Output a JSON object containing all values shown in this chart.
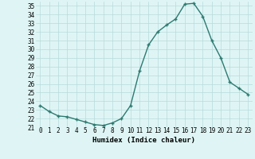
{
  "x": [
    0,
    1,
    2,
    3,
    4,
    5,
    6,
    7,
    8,
    9,
    10,
    11,
    12,
    13,
    14,
    15,
    16,
    17,
    18,
    19,
    20,
    21,
    22,
    23
  ],
  "y": [
    23.5,
    22.8,
    22.3,
    22.2,
    21.9,
    21.6,
    21.3,
    21.2,
    21.5,
    22.0,
    23.5,
    27.5,
    30.5,
    32.0,
    32.8,
    33.5,
    35.2,
    35.3,
    33.8,
    31.0,
    29.0,
    26.2,
    25.5,
    24.8
  ],
  "line_color": "#2d7a70",
  "marker": "+",
  "marker_size": 3,
  "marker_linewidth": 1.0,
  "bg_color": "#dff5f5",
  "grid_color": "#b8dada",
  "xlabel": "Humidex (Indice chaleur)",
  "xlim": [
    -0.5,
    23.5
  ],
  "ylim": [
    21,
    35.5
  ],
  "yticks": [
    21,
    22,
    23,
    24,
    25,
    26,
    27,
    28,
    29,
    30,
    31,
    32,
    33,
    34,
    35
  ],
  "xticks": [
    0,
    1,
    2,
    3,
    4,
    5,
    6,
    7,
    8,
    9,
    10,
    11,
    12,
    13,
    14,
    15,
    16,
    17,
    18,
    19,
    20,
    21,
    22,
    23
  ],
  "xlabel_fontsize": 6.5,
  "tick_fontsize": 5.5,
  "linewidth": 1.0
}
